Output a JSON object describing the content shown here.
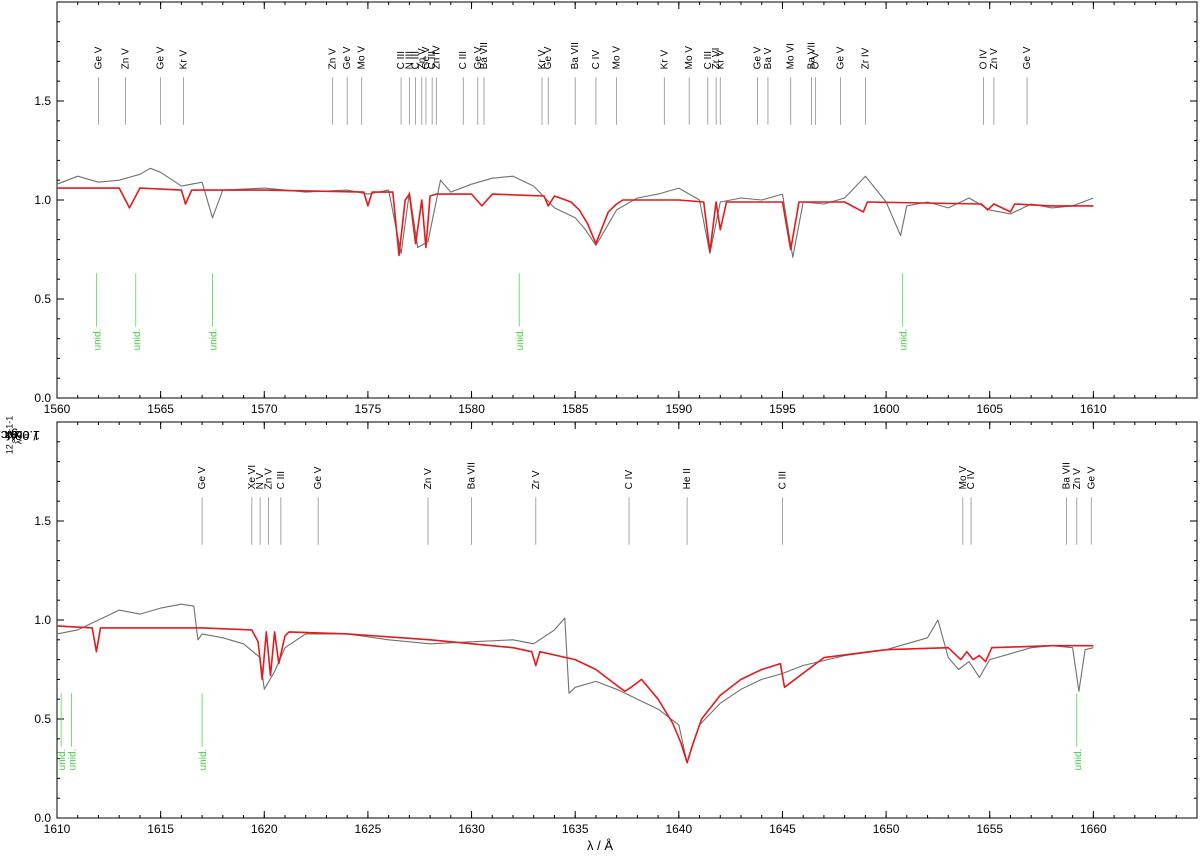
{
  "chart_data": [
    {
      "type": "line",
      "panel": "top",
      "xlim": [
        1560,
        1615
      ],
      "ylim": [
        0.0,
        2.0
      ],
      "xticks": [
        1560,
        1565,
        1570,
        1575,
        1580,
        1585,
        1590,
        1595,
        1600,
        1605,
        1610
      ],
      "xtick_labels": [
        "1560",
        "1565",
        "1570",
        "1575",
        "1580",
        "1585",
        "1590",
        "1595",
        "1600",
        "1605",
        "1610"
      ],
      "yticks": [
        0.0,
        0.5,
        1.0,
        1.5
      ],
      "ytick_labels": [
        "0.0",
        "0.5",
        "1.0",
        "1.5"
      ],
      "series": [
        {
          "role": "observed",
          "color": "#707070",
          "x": [
            1560,
            1561,
            1562,
            1563,
            1564,
            1564.5,
            1565,
            1566,
            1567,
            1567.5,
            1568,
            1570,
            1572,
            1574,
            1575,
            1576,
            1576.6,
            1577,
            1577.4,
            1577.9,
            1578.5,
            1579,
            1580,
            1581,
            1582,
            1583,
            1584,
            1585,
            1585.5,
            1586,
            1586.5,
            1587,
            1588,
            1589,
            1590,
            1591,
            1591.5,
            1592,
            1593,
            1594,
            1595,
            1595.5,
            1596,
            1597,
            1598,
            1599,
            1600,
            1600.7,
            1601,
            1602,
            1603,
            1604,
            1605,
            1606,
            1607,
            1608,
            1609,
            1610
          ],
          "y": [
            1.08,
            1.12,
            1.09,
            1.1,
            1.13,
            1.16,
            1.14,
            1.07,
            1.09,
            0.91,
            1.05,
            1.06,
            1.04,
            1.05,
            1.03,
            1.05,
            0.73,
            1.04,
            0.76,
            0.79,
            1.1,
            1.04,
            1.08,
            1.11,
            1.12,
            1.07,
            0.96,
            0.91,
            0.85,
            0.77,
            0.86,
            0.95,
            1.01,
            1.03,
            1.06,
            1.0,
            0.73,
            0.99,
            1.01,
            1.0,
            1.03,
            0.71,
            0.99,
            0.98,
            1.01,
            1.12,
            0.99,
            0.82,
            0.97,
            0.99,
            0.96,
            1.01,
            0.95,
            0.93,
            0.98,
            0.96,
            0.97,
            1.01
          ]
        },
        {
          "role": "model",
          "color": "#e41a1c",
          "x": [
            1560,
            1563,
            1563.5,
            1564,
            1566,
            1566.2,
            1566.5,
            1570,
            1574.8,
            1575,
            1575.2,
            1576.2,
            1576.5,
            1576.8,
            1577,
            1577.3,
            1577.6,
            1577.8,
            1578,
            1578.3,
            1580,
            1580.5,
            1581,
            1583.5,
            1583.7,
            1584,
            1584.8,
            1585.2,
            1585.6,
            1586,
            1586.3,
            1586.6,
            1587,
            1587.3,
            1588,
            1590,
            1591.2,
            1591.5,
            1591.8,
            1592,
            1592.3,
            1595,
            1595.4,
            1595.8,
            1598,
            1598.9,
            1599.1,
            1604.6,
            1604.9,
            1605.2,
            1605.8,
            1606,
            1606.2,
            1608,
            1610
          ],
          "y": [
            1.06,
            1.06,
            0.96,
            1.06,
            1.05,
            0.98,
            1.05,
            1.05,
            1.04,
            0.97,
            1.04,
            1.04,
            0.72,
            1.0,
            1.03,
            0.78,
            1.0,
            0.76,
            1.02,
            1.03,
            1.03,
            0.97,
            1.03,
            1.02,
            0.97,
            1.02,
            0.99,
            0.95,
            0.88,
            0.78,
            0.86,
            0.94,
            0.98,
            1.0,
            1.0,
            1.0,
            0.99,
            0.74,
            0.99,
            0.85,
            0.99,
            0.99,
            0.75,
            0.99,
            0.99,
            0.94,
            0.99,
            0.98,
            0.95,
            0.98,
            0.95,
            0.94,
            0.98,
            0.97,
            0.97
          ]
        }
      ],
      "line_id": [
        {
          "label": "Ge V",
          "x": 1562.0
        },
        {
          "label": "Zn V",
          "x": 1563.3
        },
        {
          "label": "Ge V",
          "x": 1565.0
        },
        {
          "label": "Kr V",
          "x": 1566.1
        },
        {
          "label": "Zn V",
          "x": 1573.3
        },
        {
          "label": "Ge V",
          "x": 1574.0
        },
        {
          "label": "Mo V",
          "x": 1574.7
        },
        {
          "label": "C III",
          "x": 1576.6
        },
        {
          "label": "N III",
          "x": 1577.0
        },
        {
          "label": "C III",
          "x": 1577.3
        },
        {
          "label": "Zn V",
          "x": 1577.6
        },
        {
          "label": "Ge V",
          "x": 1577.8
        },
        {
          "label": "C III",
          "x": 1578.1
        },
        {
          "label": "Zn IV",
          "x": 1578.3
        },
        {
          "label": "C III",
          "x": 1579.6
        },
        {
          "label": "Ge V",
          "x": 1580.3
        },
        {
          "label": "Ba VII",
          "x": 1580.6
        },
        {
          "label": "Kr V",
          "x": 1583.4
        },
        {
          "label": "Ge V",
          "x": 1583.7
        },
        {
          "label": "Ba VII",
          "x": 1585.0
        },
        {
          "label": "C IV",
          "x": 1586.0
        },
        {
          "label": "Mo V",
          "x": 1587.0
        },
        {
          "label": "Kr V",
          "x": 1589.3
        },
        {
          "label": "Mo V",
          "x": 1590.5
        },
        {
          "label": "C III",
          "x": 1591.4
        },
        {
          "label": "Zr VI",
          "x": 1591.8
        },
        {
          "label": "Kr V",
          "x": 1592.0
        },
        {
          "label": "Ge V",
          "x": 1593.8
        },
        {
          "label": "Ba V",
          "x": 1594.3
        },
        {
          "label": "Mo VI",
          "x": 1595.4
        },
        {
          "label": "Ba VII",
          "x": 1596.4
        },
        {
          "label": "O V",
          "x": 1596.6
        },
        {
          "label": "Ge V",
          "x": 1597.8
        },
        {
          "label": "Zr IV",
          "x": 1599.0
        },
        {
          "label": "O IV",
          "x": 1604.7
        },
        {
          "label": "Zn V",
          "x": 1605.2
        },
        {
          "label": "Ge V",
          "x": 1606.8
        }
      ],
      "unidentified": [
        {
          "label": "unid.",
          "x": 1561.9
        },
        {
          "label": "unid.",
          "x": 1563.8
        },
        {
          "label": "unid.",
          "x": 1567.5
        },
        {
          "label": "unid.",
          "x": 1582.3
        },
        {
          "label": "unid.",
          "x": 1600.8
        }
      ]
    },
    {
      "type": "line",
      "panel": "bottom",
      "xlim": [
        1610,
        1665
      ],
      "ylim": [
        0.0,
        2.0
      ],
      "xticks": [
        1610,
        1615,
        1620,
        1625,
        1630,
        1635,
        1640,
        1645,
        1650,
        1655,
        1660
      ],
      "xtick_labels": [
        "1610",
        "1615",
        "1620",
        "1625",
        "1630",
        "1635",
        "1640",
        "1645",
        "1650",
        "1655",
        "1660"
      ],
      "yticks": [
        0.0,
        0.5,
        1.0,
        1.5
      ],
      "ytick_labels": [
        "0.0",
        "0.5",
        "1.0",
        "1.5"
      ],
      "series": [
        {
          "role": "observed",
          "color": "#707070",
          "x": [
            1610,
            1611,
            1612,
            1613,
            1614,
            1615,
            1616,
            1616.6,
            1616.8,
            1617,
            1618,
            1619,
            1619.8,
            1620,
            1620.5,
            1621,
            1622,
            1624,
            1626,
            1628,
            1630,
            1632,
            1633,
            1634,
            1634.5,
            1634.7,
            1635,
            1636,
            1637,
            1638,
            1639,
            1640,
            1640.4,
            1641,
            1642,
            1643,
            1644,
            1645,
            1646,
            1648,
            1650,
            1652,
            1652.5,
            1653,
            1653.5,
            1654,
            1654.5,
            1655,
            1656,
            1657,
            1658,
            1659,
            1659.3,
            1659.6,
            1660
          ],
          "y": [
            0.93,
            0.95,
            1.0,
            1.05,
            1.03,
            1.06,
            1.08,
            1.07,
            0.9,
            0.93,
            0.91,
            0.88,
            0.81,
            0.65,
            0.74,
            0.86,
            0.93,
            0.93,
            0.9,
            0.88,
            0.89,
            0.9,
            0.88,
            0.95,
            1.01,
            0.63,
            0.66,
            0.69,
            0.65,
            0.6,
            0.55,
            0.47,
            0.28,
            0.47,
            0.58,
            0.65,
            0.7,
            0.73,
            0.77,
            0.82,
            0.85,
            0.91,
            1.0,
            0.81,
            0.75,
            0.79,
            0.71,
            0.8,
            0.83,
            0.86,
            0.87,
            0.86,
            0.64,
            0.85,
            0.86
          ]
        },
        {
          "role": "model",
          "color": "#e41a1c",
          "x": [
            1610,
            1611.7,
            1611.9,
            1612.1,
            1616.8,
            1617,
            1619.4,
            1619.7,
            1619.9,
            1620.1,
            1620.3,
            1620.5,
            1620.7,
            1621,
            1621.2,
            1624,
            1628,
            1632,
            1632.9,
            1633.1,
            1633.3,
            1635,
            1636,
            1637,
            1637.4,
            1637.7,
            1638.2,
            1639,
            1639.7,
            1640.1,
            1640.4,
            1640.7,
            1641.1,
            1642,
            1643,
            1644,
            1644.9,
            1645.1,
            1647,
            1650,
            1653,
            1653.6,
            1653.9,
            1654.2,
            1654.5,
            1654.8,
            1655.1,
            1658,
            1660
          ],
          "y": [
            0.97,
            0.96,
            0.84,
            0.96,
            0.96,
            0.96,
            0.95,
            0.89,
            0.7,
            0.94,
            0.72,
            0.94,
            0.78,
            0.92,
            0.94,
            0.93,
            0.9,
            0.86,
            0.84,
            0.77,
            0.84,
            0.8,
            0.75,
            0.67,
            0.64,
            0.66,
            0.7,
            0.6,
            0.48,
            0.38,
            0.28,
            0.38,
            0.5,
            0.62,
            0.7,
            0.75,
            0.78,
            0.66,
            0.81,
            0.85,
            0.86,
            0.8,
            0.84,
            0.8,
            0.82,
            0.79,
            0.86,
            0.87,
            0.87
          ]
        }
      ],
      "line_id": [
        {
          "label": "Ge V",
          "x": 1617.0
        },
        {
          "label": "Xe VI",
          "x": 1619.4
        },
        {
          "label": "N V",
          "x": 1619.8
        },
        {
          "label": "Zn V",
          "x": 1620.2
        },
        {
          "label": "C III",
          "x": 1620.8
        },
        {
          "label": "Ge V",
          "x": 1622.6
        },
        {
          "label": "Zn V",
          "x": 1627.9
        },
        {
          "label": "Ba VII",
          "x": 1630.0
        },
        {
          "label": "Zr V",
          "x": 1633.1
        },
        {
          "label": "C IV",
          "x": 1637.6
        },
        {
          "label": "He II",
          "x": 1640.4
        },
        {
          "label": "C III",
          "x": 1645.0
        },
        {
          "label": "Mo V",
          "x": 1653.7
        },
        {
          "label": "C IV",
          "x": 1654.1
        },
        {
          "label": "Ba VII",
          "x": 1658.7
        },
        {
          "label": "Zn V",
          "x": 1659.2
        },
        {
          "label": "Ge V",
          "x": 1659.9
        }
      ],
      "unidentified": [
        {
          "label": "unid.",
          "x": 1610.2
        },
        {
          "label": "unid.",
          "x": 1610.7
        },
        {
          "label": "unid.",
          "x": 1617.0
        },
        {
          "label": "unid.",
          "x": 1659.2
        }
      ]
    }
  ],
  "ylabel": {
    "prefix": "1.08 x 10",
    "exp": "12",
    "mid": " x f",
    "sub": "λ",
    "unit": " / erg cm",
    "exp2": "-2",
    "unit2": " s",
    "exp3": "-1",
    "unit3": " Å",
    "exp4": "-1"
  },
  "xlabel": "λ / Å"
}
